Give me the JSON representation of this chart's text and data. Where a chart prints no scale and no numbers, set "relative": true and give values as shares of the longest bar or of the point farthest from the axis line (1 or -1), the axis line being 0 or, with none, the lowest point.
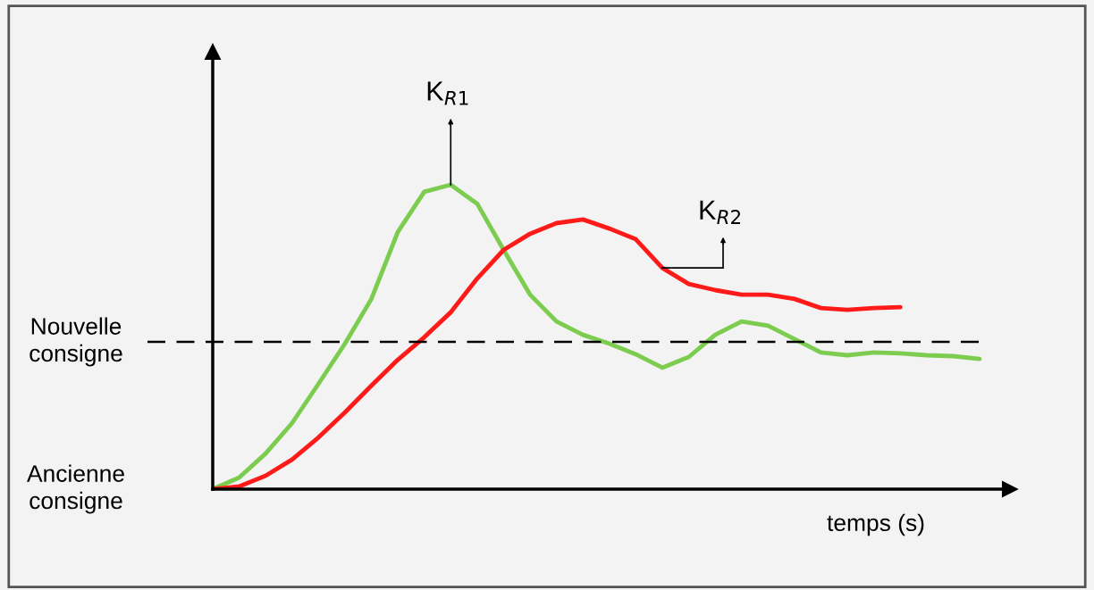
{
  "chart_data": {
    "type": "line",
    "relative": true,
    "xlabel": "temps (s)",
    "legend": false,
    "marker": "none",
    "line_style": "solid",
    "categories": [
      null,
      null,
      null,
      null,
      null,
      null,
      null,
      null,
      null,
      null,
      null,
      null,
      null,
      null,
      null,
      null,
      null,
      null,
      null,
      null,
      null,
      null,
      null,
      null,
      null,
      null,
      null,
      null,
      null,
      null
    ],
    "series": [
      {
        "name": "K$_{R1}$",
        "color": "#7ccc50",
        "values": [
          0,
          0.038,
          0.117,
          0.217,
          0.346,
          0.478,
          0.625,
          0.845,
          0.977,
          1.0,
          0.938,
          0.786,
          0.639,
          0.551,
          0.507,
          0.478,
          0.443,
          0.399,
          0.434,
          0.507,
          0.551,
          0.537,
          0.493,
          0.449,
          0.44,
          0.449,
          0.446,
          0.44,
          0.437,
          0.428
        ]
      },
      {
        "name": "K$_{R2}$",
        "color": "#ff1a1a",
        "values": [
          0,
          0.009,
          0.044,
          0.097,
          0.17,
          0.252,
          0.34,
          0.425,
          0.499,
          0.581,
          0.692,
          0.786,
          0.839,
          0.874,
          0.886,
          0.856,
          0.821,
          0.727,
          0.674,
          0.654,
          0.639,
          0.639,
          0.625,
          0.595,
          0.589,
          0.595,
          0.598,
          null,
          null,
          null
        ]
      }
    ],
    "ref_lines": [
      {
        "axis": "y",
        "value": 0.484,
        "label": "Nouvelle consigne",
        "color": "#000000",
        "line_style": "dashed"
      }
    ],
    "annotations": [
      "Ancienne consigne"
    ]
  }
}
